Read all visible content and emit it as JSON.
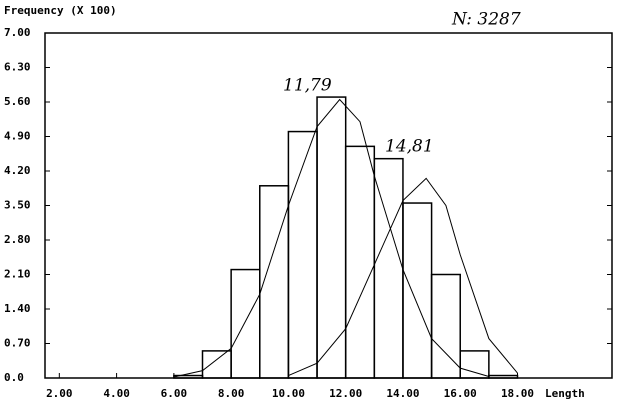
{
  "chart_data": {
    "type": "histogram",
    "y_label": "Frequency (X 100)",
    "x_label": "Length",
    "annotations": [
      "N: 3287",
      "11,79",
      "14,81"
    ],
    "bins": [
      6,
      7,
      8,
      9,
      10,
      11,
      12,
      13,
      14,
      15,
      16,
      17,
      18
    ],
    "values": [
      0.05,
      0.55,
      2.2,
      3.9,
      5.0,
      5.7,
      4.7,
      4.45,
      3.55,
      2.1,
      0.55,
      0.05
    ],
    "color": "#000000",
    "curves": [
      {
        "x": [
          6,
          7,
          8,
          9,
          10,
          11,
          11.79,
          12.5,
          13,
          14,
          15,
          16,
          17
        ],
        "values": [
          0.02,
          0.15,
          0.6,
          1.7,
          3.5,
          5.1,
          5.65,
          5.2,
          4.1,
          2.2,
          0.8,
          0.2,
          0.03
        ]
      },
      {
        "x": [
          10,
          11,
          12,
          13,
          14,
          14.81,
          15.5,
          16,
          17,
          18
        ],
        "values": [
          0.05,
          0.3,
          1.0,
          2.3,
          3.6,
          4.05,
          3.5,
          2.5,
          0.8,
          0.1
        ]
      }
    ],
    "xlim": [
      1.5,
      21.3
    ],
    "ylim": [
      0,
      7
    ],
    "xticks": [
      {
        "value": 2,
        "label": "2.00"
      },
      {
        "value": 4,
        "label": "4.00"
      },
      {
        "value": 6,
        "label": "6.00"
      },
      {
        "value": 8,
        "label": "8.00"
      },
      {
        "value": 10,
        "label": "10.00"
      },
      {
        "value": 12,
        "label": "12.00"
      },
      {
        "value": 14,
        "label": "14.00"
      },
      {
        "value": 16,
        "label": "16.00"
      },
      {
        "value": 18,
        "label": "18.00"
      }
    ],
    "yticks": [
      {
        "value": 0,
        "label": "0.0"
      },
      {
        "value": 0.7,
        "label": "0.70"
      },
      {
        "value": 1.4,
        "label": "1.40"
      },
      {
        "value": 2.1,
        "label": "2.10"
      },
      {
        "value": 2.8,
        "label": "2.80"
      },
      {
        "value": 3.5,
        "label": "3.50"
      },
      {
        "value": 4.2,
        "label": "4.20"
      },
      {
        "value": 4.9,
        "label": "4.90"
      },
      {
        "value": 5.6,
        "label": "5.60"
      },
      {
        "value": 6.3,
        "label": "6.30"
      },
      {
        "value": 7,
        "label": "7.00"
      }
    ]
  }
}
